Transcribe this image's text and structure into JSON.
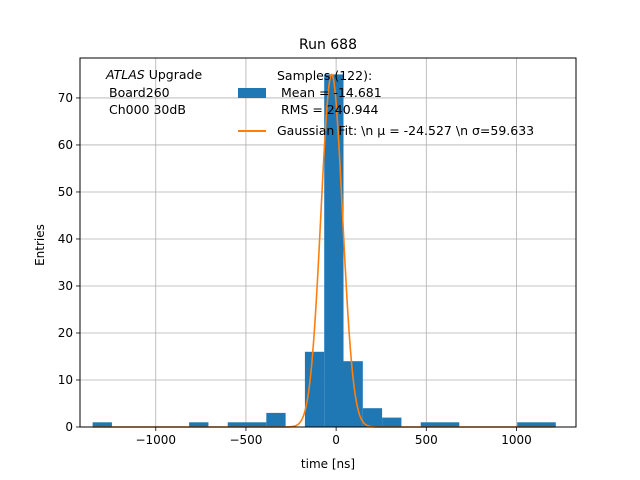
{
  "chart_data": {
    "type": "histogram",
    "title": "Run 688",
    "xlabel": "time [ns]",
    "ylabel": "Entries",
    "xlim": [
      -1420,
      1330
    ],
    "ylim": [
      0,
      78.5
    ],
    "xticks": [
      -1000,
      -500,
      0,
      500,
      1000
    ],
    "xtick_labels": [
      "−1000",
      "−500",
      "0",
      "500",
      "1000"
    ],
    "yticks": [
      0,
      10,
      20,
      30,
      40,
      50,
      60,
      70
    ],
    "grid": true,
    "annotation": {
      "atlas": "ATLAS",
      "upgrade": " Upgrade",
      "line2": "Board260",
      "line3": "Ch000 30dB"
    },
    "histogram": {
      "bin_edges": [
        -1350,
        -1243,
        -1136,
        -1029,
        -922,
        -815,
        -708,
        -601,
        -494,
        -387,
        -280,
        -173,
        -66,
        41,
        148,
        255,
        362,
        469,
        576,
        683,
        790,
        897,
        1004,
        1111,
        1218
      ],
      "counts": [
        1,
        0,
        0,
        0,
        0,
        1,
        0,
        1,
        1,
        3,
        0,
        16,
        75,
        14,
        4,
        2,
        0,
        1,
        1,
        0,
        0,
        0,
        1,
        1
      ],
      "color": "#1f77b4"
    },
    "gaussian_fit": {
      "mu": -24.527,
      "sigma": 59.633,
      "amplitude": 75,
      "color": "#ff7f0e"
    },
    "legend": {
      "placement": "top-right",
      "hist_label": [
        "Samples (122):",
        " Mean = -14.681",
        " RMS = 240.944"
      ],
      "fit_label": "Gaussian Fit: \\n μ = -24.527 \\n σ=59.633"
    }
  }
}
